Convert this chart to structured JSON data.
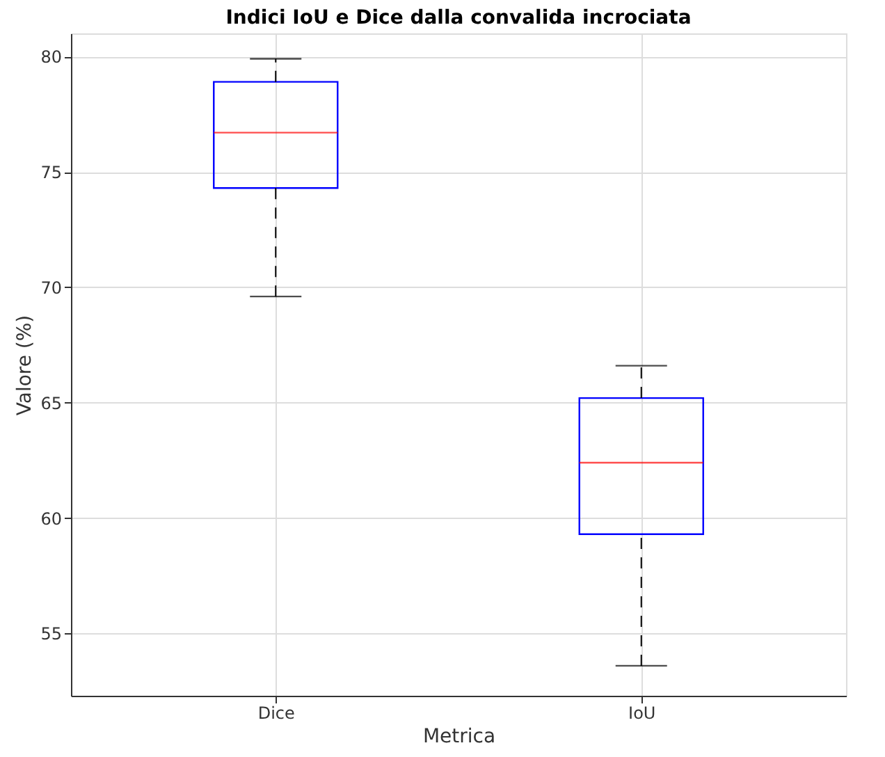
{
  "chart_data": {
    "type": "box",
    "title": "Indici IoU e Dice dalla convalida incrociata",
    "xlabel": "Metrica",
    "ylabel": "Valore (%)",
    "categories": [
      "Dice",
      "IoU"
    ],
    "boxes": [
      {
        "low": 69.6,
        "q1": 74.3,
        "median": 76.7,
        "q3": 78.9,
        "high": 79.9
      },
      {
        "low": 53.6,
        "q1": 59.3,
        "median": 62.4,
        "q3": 65.2,
        "high": 66.6
      }
    ],
    "ylim": [
      52.3,
      81.0
    ],
    "yticks": [
      55,
      60,
      65,
      70,
      75,
      80
    ],
    "grid": true
  }
}
